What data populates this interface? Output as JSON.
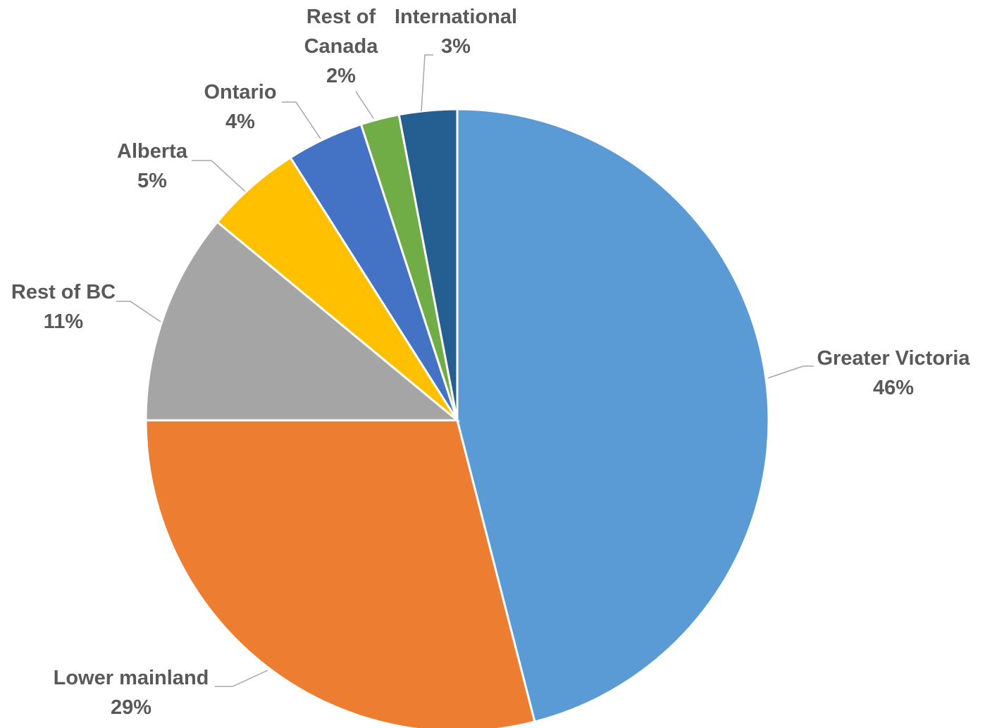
{
  "chart_data": {
    "type": "pie",
    "title": "",
    "slices": [
      {
        "label": "Greater Victoria",
        "value": 46,
        "display": "46%",
        "color": "#5b9bd5"
      },
      {
        "label": "Lower mainland",
        "value": 29,
        "display": "29%",
        "color": "#ed7d31"
      },
      {
        "label": "Rest of BC",
        "value": 11,
        "display": "11%",
        "color": "#a5a5a5"
      },
      {
        "label": "Alberta",
        "value": 5,
        "display": "5%",
        "color": "#ffc000"
      },
      {
        "label": "Ontario",
        "value": 4,
        "display": "4%",
        "color": "#4472c4"
      },
      {
        "label": "Rest of Canada",
        "value": 2,
        "display": "2%",
        "color": "#70ad47"
      },
      {
        "label": "International",
        "value": 3,
        "display": "3%",
        "color": "#255e91"
      }
    ],
    "legend": false
  }
}
